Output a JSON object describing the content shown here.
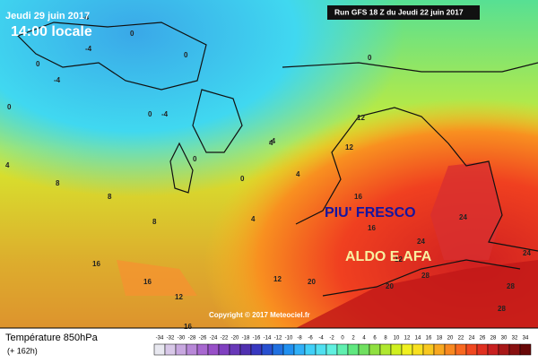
{
  "header": {
    "date": "Jeudi 29 juin 2017",
    "time": "14:00 locale",
    "run": "Run GFS 18 Z du Jeudi 22 juin 2017"
  },
  "annotations": {
    "cool": "PIU' FRESCO",
    "hot": "ALDO E AFA"
  },
  "copyright": "Copyright © 2017 Meteociel.fr",
  "footer": {
    "field": "Température 850hPa",
    "lead": "(+ 162h)"
  },
  "contour_labels": [
    0,
    -4,
    0,
    -4,
    0,
    0,
    -4,
    0,
    0,
    -4,
    0,
    4,
    4,
    8,
    8,
    8,
    4,
    12,
    12,
    16,
    16,
    12,
    12,
    16,
    20,
    20,
    24,
    24,
    28,
    28,
    24,
    28,
    16,
    12,
    16,
    4,
    0,
    -4
  ],
  "colorbar": {
    "ticks": [
      -34,
      -32,
      -30,
      -28,
      -26,
      -24,
      -22,
      -20,
      -18,
      -16,
      -14,
      -12,
      -10,
      -8,
      -6,
      -4,
      -2,
      0,
      2,
      4,
      6,
      8,
      10,
      12,
      14,
      16,
      18,
      20,
      22,
      24,
      26,
      28,
      30,
      32,
      34
    ],
    "colors": [
      "#e8e8f0",
      "#d8c8e8",
      "#c8a8e0",
      "#b888d8",
      "#a868d0",
      "#9850c8",
      "#8040c0",
      "#6838b8",
      "#5030b0",
      "#3838c0",
      "#2850d0",
      "#2070e0",
      "#2090f0",
      "#30b0f8",
      "#40d0f8",
      "#50e0f0",
      "#60f0e0",
      "#60f0b0",
      "#60e880",
      "#70e060",
      "#90e040",
      "#b0e830",
      "#d0f020",
      "#f0f020",
      "#f8e020",
      "#f8c820",
      "#f8a820",
      "#f88820",
      "#f86820",
      "#f04820",
      "#e03020",
      "#c82020",
      "#a81818",
      "#881010",
      "#680808"
    ]
  }
}
